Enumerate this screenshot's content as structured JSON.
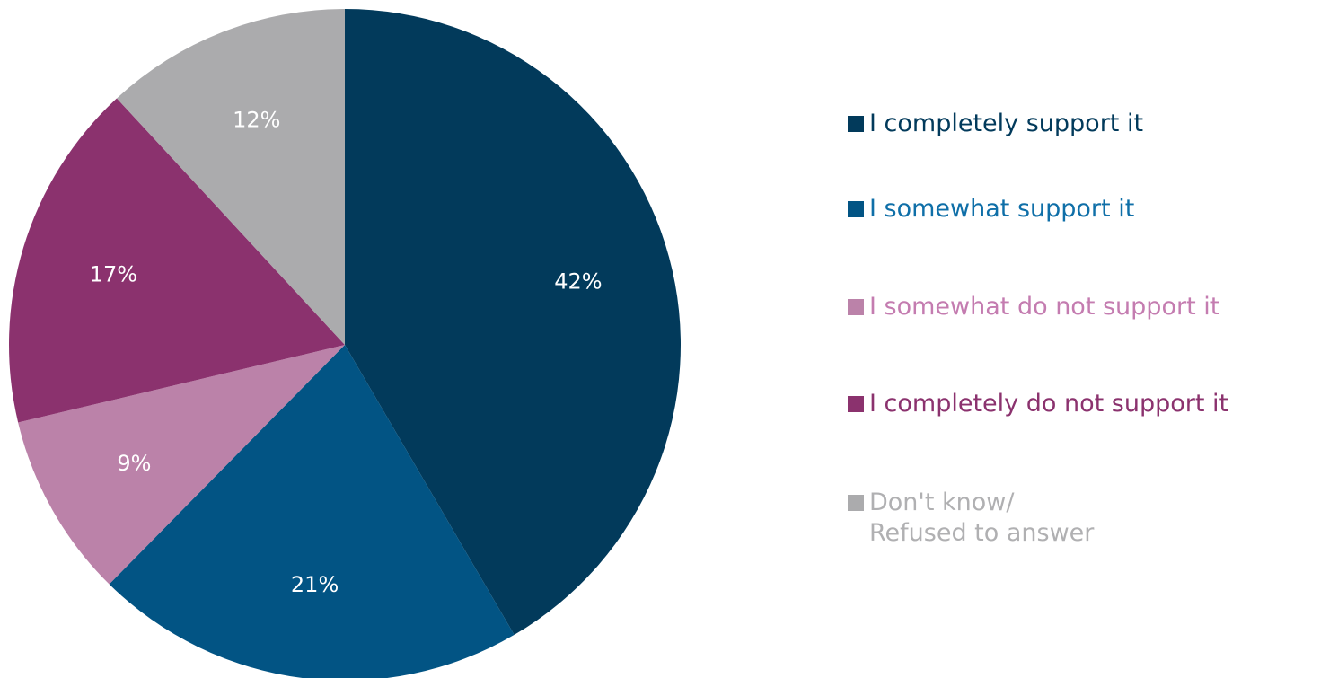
{
  "chart_data": {
    "type": "pie",
    "slices": [
      {
        "label": "I completely support it",
        "value": 42,
        "display": "42%",
        "color": "#023A5B",
        "label_color": "#FFFFFF",
        "legend_color": "#023A5B"
      },
      {
        "label": "I somewhat support it",
        "value": 21,
        "display": "21%",
        "color": "#025484",
        "label_color": "#FFFFFF",
        "legend_color": "#0F6FA8"
      },
      {
        "label": "I somewhat do not support it",
        "value": 9,
        "display": "9%",
        "color": "#BB82A9",
        "label_color": "#FFFFFF",
        "legend_color": "#C47CB0"
      },
      {
        "label": "I completely do not support it",
        "value": 17,
        "display": "17%",
        "color": "#8B326E",
        "label_color": "#FFFFFF",
        "legend_color": "#8B326E"
      },
      {
        "label": "Don't know/\nRefused to answer",
        "value": 12,
        "display": "12%",
        "color": "#ABABAD",
        "label_color": "#FFFFFF",
        "legend_color": "#B0B0B2"
      }
    ],
    "start_angle": "12 o'clock",
    "direction": "clockwise",
    "legend_placement": "right"
  }
}
